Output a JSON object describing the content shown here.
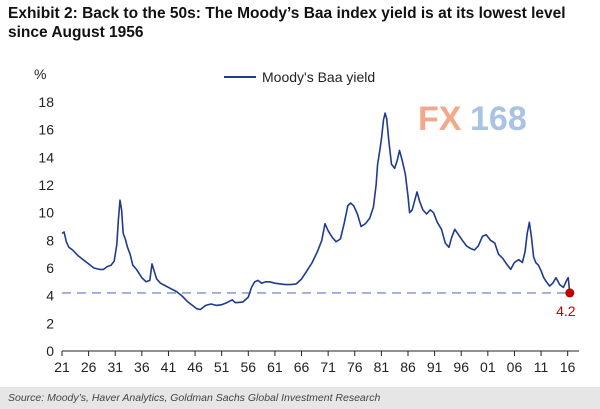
{
  "title": "Exhibit 2: Back to the 50s: The Moody’s Baa index yield is at its lowest level since August 1956",
  "source": "Source: Moody’s, Haver Analytics, Goldman Sachs Global Investment Research",
  "watermark": {
    "fx": "FX",
    "num": "168"
  },
  "colors": {
    "line": "#1f3b8f",
    "reference": "#8ea4d2",
    "marker": "#c00000",
    "watermark_fx": "#f4a88a",
    "watermark_num": "#a9c3e3"
  },
  "chart_data": {
    "type": "line",
    "title": "Exhibit 2: Back to the 50s: The Moody’s Baa index yield is at its lowest level since August 1956",
    "ylabel": "%",
    "xlabel": "",
    "ylim": [
      0,
      18
    ],
    "xlim": [
      1921,
      2017
    ],
    "yticks": [
      0,
      2,
      4,
      6,
      8,
      10,
      12,
      14,
      16,
      18
    ],
    "xtick_labels": [
      "21",
      "26",
      "31",
      "36",
      "41",
      "46",
      "51",
      "56",
      "61",
      "66",
      "71",
      "76",
      "81",
      "86",
      "91",
      "96",
      "01",
      "06",
      "11",
      "16"
    ],
    "xtick_years": [
      1921,
      1926,
      1931,
      1936,
      1941,
      1946,
      1951,
      1956,
      1961,
      1966,
      1971,
      1976,
      1981,
      1986,
      1991,
      1996,
      2001,
      2006,
      2011,
      2016
    ],
    "grid": false,
    "legend": {
      "position": "top-center"
    },
    "reference_line": {
      "y": 4.2,
      "style": "dashed"
    },
    "annotation": {
      "label": "4.2",
      "x": 2016.4,
      "y": 4.2
    },
    "series": [
      {
        "name": "Moody's Baa yield",
        "x": [
          1921,
          1921.4,
          1921.8,
          1922.3,
          1923,
          1924,
          1925,
          1926,
          1927,
          1928,
          1928.8,
          1929.5,
          1930.2,
          1930.8,
          1931.3,
          1931.6,
          1931.9,
          1932.2,
          1932.5,
          1932.9,
          1933.3,
          1933.8,
          1934.3,
          1935,
          1936,
          1936.8,
          1937.5,
          1937.9,
          1938.3,
          1938.8,
          1939.5,
          1940.5,
          1941.5,
          1942.5,
          1943.5,
          1944.5,
          1945.5,
          1946.3,
          1947,
          1948,
          1949,
          1950,
          1951,
          1952,
          1953,
          1953.5,
          1954,
          1955,
          1956,
          1956.6,
          1957.2,
          1957.8,
          1958.5,
          1959.3,
          1960,
          1961,
          1962,
          1963,
          1964,
          1965,
          1966,
          1967,
          1968,
          1969,
          1969.8,
          1970.4,
          1971,
          1971.8,
          1972.5,
          1973.3,
          1974,
          1974.7,
          1975.2,
          1975.8,
          1976.5,
          1977.2,
          1978,
          1978.8,
          1979.5,
          1980,
          1980.3,
          1980.7,
          1981,
          1981.4,
          1981.7,
          1982,
          1982.4,
          1982.9,
          1983.5,
          1984,
          1984.4,
          1984.9,
          1985.5,
          1986,
          1986.3,
          1986.8,
          1987.2,
          1987.7,
          1988.2,
          1988.8,
          1989.5,
          1990.2,
          1990.8,
          1991.5,
          1992.3,
          1993,
          1993.7,
          1994.2,
          1994.8,
          1995.5,
          1996.2,
          1997,
          1997.8,
          1998.5,
          1999.2,
          2000,
          2000.7,
          2001.5,
          2002.3,
          2003,
          2003.8,
          2004.5,
          2005.3,
          2006,
          2006.8,
          2007.5,
          2008,
          2008.4,
          2008.8,
          2009.2,
          2009.6,
          2010,
          2010.5,
          2011,
          2011.5,
          2012,
          2012.6,
          2013.2,
          2013.8,
          2014.5,
          2015.2,
          2015.8,
          2016.1,
          2016.4
        ],
        "values": [
          8.5,
          8.6,
          7.9,
          7.5,
          7.3,
          6.9,
          6.6,
          6.3,
          6.0,
          5.9,
          5.9,
          6.1,
          6.2,
          6.5,
          7.7,
          9.5,
          10.9,
          10.2,
          8.5,
          8.1,
          7.5,
          7.0,
          6.2,
          5.9,
          5.3,
          5.0,
          5.1,
          6.3,
          5.8,
          5.2,
          4.9,
          4.7,
          4.5,
          4.3,
          4.0,
          3.6,
          3.3,
          3.05,
          3.0,
          3.3,
          3.4,
          3.3,
          3.35,
          3.5,
          3.7,
          3.5,
          3.5,
          3.55,
          3.9,
          4.6,
          5.0,
          5.1,
          4.9,
          5.0,
          5.0,
          4.9,
          4.85,
          4.8,
          4.8,
          4.85,
          5.2,
          5.8,
          6.4,
          7.2,
          8.0,
          9.2,
          8.7,
          8.2,
          7.9,
          8.1,
          9.2,
          10.5,
          10.7,
          10.5,
          9.9,
          9.0,
          9.2,
          9.6,
          10.4,
          12.0,
          13.5,
          14.5,
          15.3,
          16.7,
          17.2,
          16.8,
          15.2,
          13.5,
          13.2,
          13.8,
          14.5,
          13.8,
          12.8,
          11.2,
          10.0,
          10.2,
          10.8,
          11.5,
          10.8,
          10.2,
          9.9,
          10.2,
          10.0,
          9.3,
          8.8,
          7.8,
          7.5,
          8.2,
          8.8,
          8.4,
          8.0,
          7.6,
          7.4,
          7.3,
          7.6,
          8.3,
          8.4,
          8.0,
          7.8,
          7.0,
          6.7,
          6.3,
          5.9,
          6.4,
          6.6,
          6.4,
          7.2,
          8.5,
          9.3,
          8.2,
          6.8,
          6.4,
          6.2,
          5.8,
          5.3,
          5.0,
          4.7,
          4.9,
          5.3,
          4.8,
          4.6,
          5.1,
          5.3,
          4.2
        ]
      }
    ]
  }
}
